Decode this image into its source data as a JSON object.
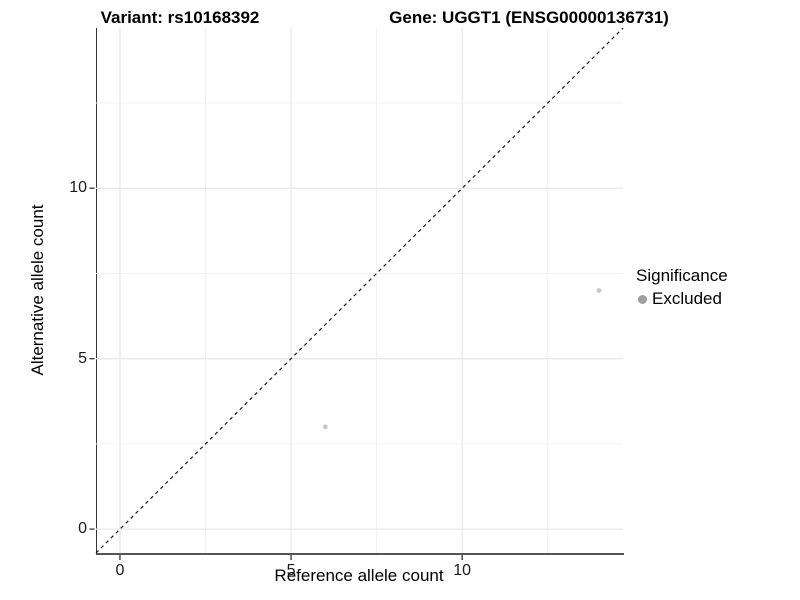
{
  "chart_data": {
    "type": "scatter",
    "title_left": "Variant: rs10168392",
    "title_right": "Gene: UGGT1 (ENSG00000136731)",
    "xlabel": "Reference allele count",
    "ylabel": "Alternative allele count",
    "xlim": [
      -0.7,
      14.7
    ],
    "ylim": [
      -0.7,
      14.7
    ],
    "x_ticks": [
      0,
      5,
      10
    ],
    "y_ticks": [
      0,
      5,
      10
    ],
    "x_minor_ticks": [
      2.5,
      7.5,
      12.5
    ],
    "y_minor_ticks": [
      2.5,
      7.5,
      12.5
    ],
    "grid": {
      "major_color": "#e8e8e8",
      "minor_color": "#f0f0f0"
    },
    "identity_line": {
      "style": "dashed",
      "color": "#1a1a1a"
    },
    "series": [
      {
        "name": "Excluded",
        "color": "#c7c7c7",
        "point_radius": 2.4,
        "x": [
          6,
          14
        ],
        "y": [
          3,
          7
        ]
      }
    ],
    "legend": {
      "position": "right",
      "title": "Significance",
      "entries": [
        {
          "label": "Excluded",
          "color": "#9e9e9e"
        }
      ]
    },
    "axis_color": "#333333",
    "tick_color": "#333333"
  }
}
